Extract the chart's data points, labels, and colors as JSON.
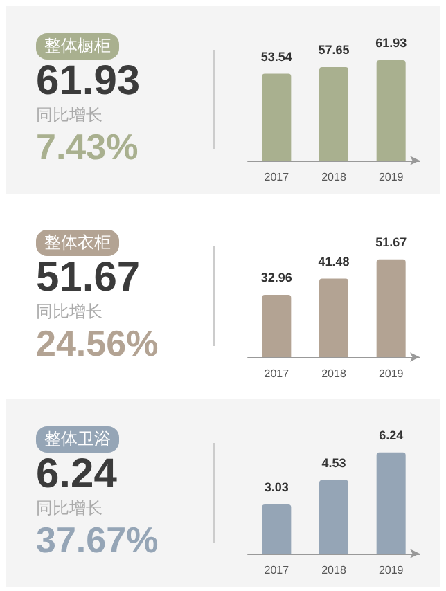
{
  "chart_data": [
    {
      "type": "other",
      "title": "整体橱柜",
      "color": "#a9b08f",
      "annotations": [
        "61.93",
        "同比增长",
        "7.43%"
      ]
    },
    {
      "type": "bar",
      "categories": [
        "2017",
        "2018",
        "2019"
      ],
      "values": [
        53.54,
        57.65,
        61.93
      ],
      "color": "#a9b08f",
      "data_labels": true,
      "tick_labels": "x"
    },
    {
      "type": "other",
      "title": "整体衣柜",
      "color": "#b3a393",
      "annotations": [
        "51.67",
        "同比增长",
        "24.56%"
      ]
    },
    {
      "type": "bar",
      "categories": [
        "2017",
        "2018",
        "2019"
      ],
      "values": [
        32.96,
        41.48,
        51.67
      ],
      "color": "#b3a393",
      "data_labels": true,
      "tick_labels": "x"
    },
    {
      "type": "other",
      "title": "整体卫浴",
      "color": "#95a5b6",
      "annotations": [
        "6.24",
        "同比增长",
        "37.67%"
      ]
    },
    {
      "type": "bar",
      "categories": [
        "2017",
        "2018",
        "2019"
      ],
      "values": [
        3.03,
        4.53,
        6.24
      ],
      "color": "#95a5b6",
      "data_labels": true,
      "tick_labels": "x"
    }
  ]
}
